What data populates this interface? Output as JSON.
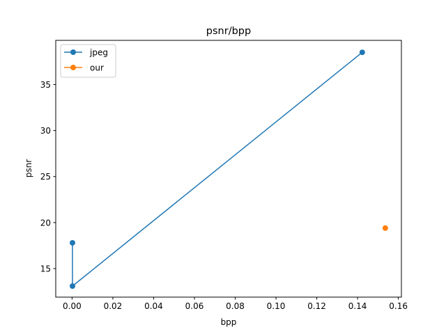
{
  "chart_data": {
    "type": "line",
    "title": "psnr/bpp",
    "xlabel": "bpp",
    "ylabel": "psnr",
    "xlim": [
      -0.008,
      0.1615
    ],
    "ylim": [
      11.9,
      39.8
    ],
    "xticks": [
      0.0,
      0.02,
      0.04,
      0.06,
      0.08,
      0.1,
      0.12,
      0.14,
      0.16
    ],
    "xtick_labels": [
      "0.00",
      "0.02",
      "0.04",
      "0.06",
      "0.08",
      "0.10",
      "0.12",
      "0.14",
      "0.16"
    ],
    "yticks": [
      15,
      20,
      25,
      30,
      35
    ],
    "ytick_labels": [
      "15",
      "20",
      "25",
      "30",
      "35"
    ],
    "grid": false,
    "legend_position": "top-left",
    "series": [
      {
        "name": "jpeg",
        "color": "#1f77b4",
        "marker": "circle",
        "line": true,
        "points": [
          {
            "x": 0.0002,
            "y": 17.8
          },
          {
            "x": 0.0002,
            "y": 13.1
          },
          {
            "x": 0.1423,
            "y": 38.5
          }
        ]
      },
      {
        "name": "our",
        "color": "#ff7f0e",
        "marker": "circle",
        "line": true,
        "points": [
          {
            "x": 0.1536,
            "y": 19.4
          }
        ]
      }
    ]
  }
}
